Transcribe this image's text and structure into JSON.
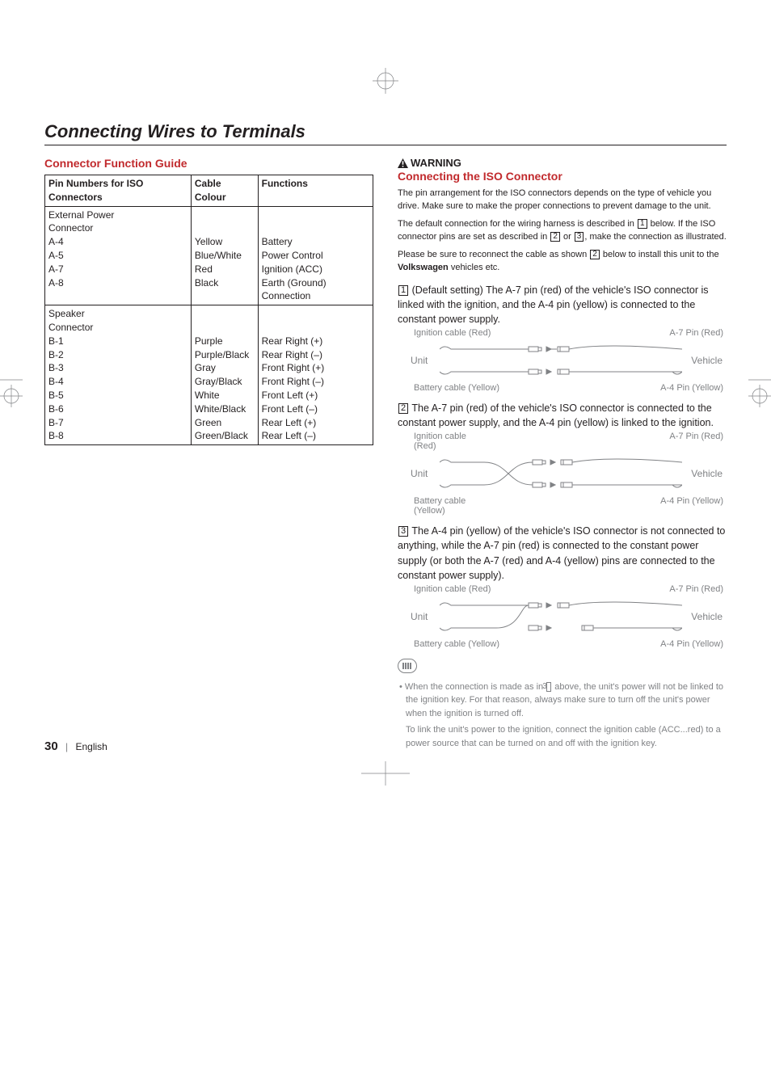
{
  "section_title": "Connecting Wires to Terminals",
  "left": {
    "subhead": "Connector Function Guide",
    "headers": [
      "Pin Numbers for ISO Connectors",
      "Cable Colour",
      "Functions"
    ],
    "group1": {
      "title": "External Power Connector",
      "rows": [
        {
          "pin": "A-4",
          "colour": "Yellow",
          "func": "Battery"
        },
        {
          "pin": "A-5",
          "colour": "Blue/White",
          "func": "Power Control"
        },
        {
          "pin": "A-7",
          "colour": "Red",
          "func": "Ignition (ACC)"
        },
        {
          "pin": "A-8",
          "colour": "Black",
          "func": "Earth (Ground) Connection"
        }
      ]
    },
    "group2": {
      "title": "Speaker Connector",
      "rows": [
        {
          "pin": "B-1",
          "colour": "Purple",
          "func": "Rear Right (+)"
        },
        {
          "pin": "B-2",
          "colour": "Purple/Black",
          "func": "Rear Right (–)"
        },
        {
          "pin": "B-3",
          "colour": "Gray",
          "func": "Front Right (+)"
        },
        {
          "pin": "B-4",
          "colour": "Gray/Black",
          "func": "Front Right (–)"
        },
        {
          "pin": "B-5",
          "colour": "White",
          "func": "Front Left (+)"
        },
        {
          "pin": "B-6",
          "colour": "White/Black",
          "func": "Front Left (–)"
        },
        {
          "pin": "B-7",
          "colour": "Green",
          "func": "Rear Left (+)"
        },
        {
          "pin": "B-8",
          "colour": "Green/Black",
          "func": "Rear Left (–)"
        }
      ]
    }
  },
  "right": {
    "warning_label": "WARNING",
    "warning_head": "Connecting the ISO Connector",
    "warning_body_1": "The pin arrangement for the ISO connectors depends on the type of vehicle you drive. Make sure to make the proper connections to prevent damage to the unit.",
    "warning_body_2a": "The default connection for the wiring harness is described in ",
    "warning_body_2b": " below. If the ISO connector pins are set as described in ",
    "warning_body_2c": " or ",
    "warning_body_2d": ", make the connection as illustrated.",
    "warning_body_3a": "Please be sure to reconnect the cable as shown ",
    "warning_body_3b": " below to install this unit to the ",
    "warning_body_3c": " vehicles etc.",
    "warning_bold_brand": "Volkswagen",
    "scen1_text": "(Default setting) The A-7 pin (red) of the vehicle's ISO connector is linked with the ignition, and the A-4 pin (yellow) is connected to the constant power supply.",
    "scen2_text": "The A-7 pin (red) of the vehicle's ISO connector is connected to the constant power supply, and the A-4 pin (yellow) is linked to the ignition.",
    "scen3_text": "The A-4 pin (yellow) of the vehicle's ISO connector is not connected to anything, while the A-7 pin (red) is connected to the constant power supply (or both the A-7 (red) and A-4 (yellow) pins are connected to the constant power supply).",
    "labels": {
      "ignition_cable_red": "Ignition cable (Red)",
      "ignition_cable_red_stack_a": "Ignition cable",
      "ignition_cable_red_stack_b": "(Red)",
      "battery_cable_yellow": "Battery cable (Yellow)",
      "battery_cable_yellow_stack_a": "Battery cable",
      "battery_cable_yellow_stack_b": "(Yellow)",
      "a7_pin_red": "A-7 Pin (Red)",
      "a4_pin_yellow": "A-4 Pin (Yellow)",
      "unit": "Unit",
      "vehicle": "Vehicle"
    },
    "note_1a": "When the connection is made as in ",
    "note_1b": " above, the unit's power will not be linked to the ignition key. For that reason, always make sure to turn off the unit's power when the ignition is turned off.",
    "note_2": "To link the unit's power to the ignition, connect the ignition cable (ACC...red) to a power source that can be turned on and off with the ignition key."
  },
  "footer": {
    "page_num": "30",
    "lang": "English"
  },
  "colors": {
    "accent": "#c12a2d",
    "text": "#231f20",
    "muted": "#808285"
  }
}
